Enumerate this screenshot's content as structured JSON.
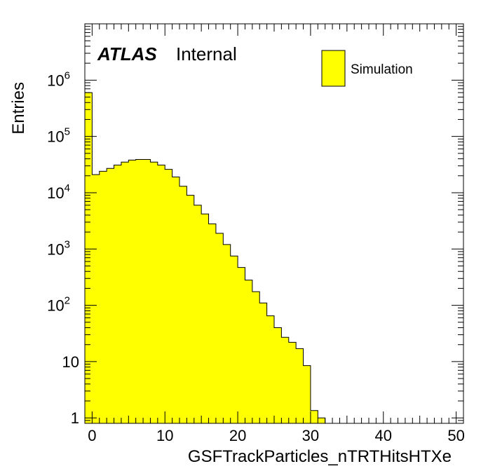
{
  "chart_data": {
    "type": "histogram",
    "xlabel": "GSFTrackParticles_nTRTHitsHTXe",
    "ylabel": "Entries",
    "log_y": true,
    "xlim": [
      -1,
      51
    ],
    "ylim": [
      0.8,
      10000000
    ],
    "x_ticks": [
      "0",
      "10",
      "20",
      "30",
      "40",
      "50"
    ],
    "y_ticks": [
      {
        "value": 1,
        "base": "1",
        "exp": ""
      },
      {
        "value": 10,
        "base": "10",
        "exp": ""
      },
      {
        "value": 100,
        "base": "10",
        "exp": "2"
      },
      {
        "value": 1000,
        "base": "10",
        "exp": "3"
      },
      {
        "value": 10000,
        "base": "10",
        "exp": "4"
      },
      {
        "value": 100000,
        "base": "10",
        "exp": "5"
      },
      {
        "value": 1000000,
        "base": "10",
        "exp": "6"
      }
    ],
    "bin_width": 1,
    "bin_edges_start": -1,
    "values": [
      600000,
      21000,
      24000,
      27000,
      31000,
      35000,
      38000,
      39000,
      39000,
      35000,
      31000,
      26000,
      19000,
      13000,
      9000,
      6000,
      4200,
      2800,
      1900,
      1200,
      750,
      470,
      280,
      175,
      110,
      65,
      40,
      27,
      22,
      17,
      8.5,
      1.35,
      1
    ],
    "fill_color": "#ffff00",
    "line_color": "#000000",
    "legend": [
      {
        "name": "Simulation",
        "color": "#ffff00"
      }
    ],
    "legend_position": "top-right",
    "annotation": {
      "bold": "ATLAS",
      "normal": "Internal"
    }
  }
}
